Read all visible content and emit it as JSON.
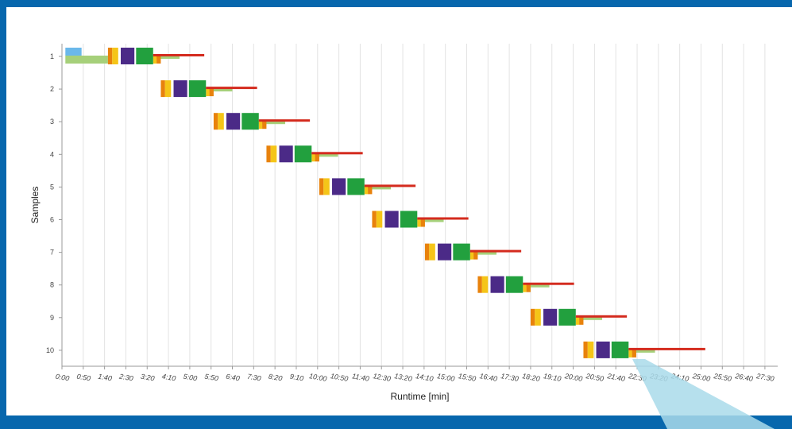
{
  "colors": {
    "background_frame": "#0767ad",
    "callout": "#a9dbea",
    "grid": "#e3e3e3",
    "axis": "#9a9a9a"
  },
  "chart_data": {
    "type": "gantt",
    "xlabel": "Runtime [min]",
    "ylabel": "Samples",
    "x_unit": "seconds",
    "xlim": [
      0,
      1680
    ],
    "x_ticks": [
      "0:00",
      "0:50",
      "1:40",
      "2:30",
      "3:20",
      "4:10",
      "5:00",
      "5:50",
      "6:40",
      "7:30",
      "8:20",
      "9:10",
      "10:00",
      "10:50",
      "11:40",
      "12:30",
      "13:20",
      "14:10",
      "15:00",
      "15:50",
      "16:40",
      "17:30",
      "18:20",
      "19:10",
      "20:00",
      "20:50",
      "21:40",
      "22:30",
      "23:20",
      "24:10",
      "25:00",
      "25:50",
      "26:40",
      "27:30"
    ],
    "x_tick_values": [
      0,
      50,
      100,
      150,
      200,
      250,
      300,
      350,
      400,
      450,
      500,
      550,
      600,
      650,
      700,
      750,
      800,
      850,
      900,
      950,
      1000,
      1050,
      1100,
      1150,
      1200,
      1250,
      1300,
      1350,
      1400,
      1450,
      1500,
      1550,
      1600,
      1650
    ],
    "y_categories": [
      "1",
      "2",
      "3",
      "4",
      "5",
      "6",
      "7",
      "8",
      "9",
      "10"
    ],
    "grid": true,
    "legend": "none",
    "sample_step_offset_s": 124,
    "sample_template": [
      {
        "name": "step-orange",
        "start": 108,
        "end": 118,
        "color": "#e8820c",
        "lane": "main"
      },
      {
        "name": "step-yellow",
        "start": 118,
        "end": 132,
        "color": "#f5c518",
        "lane": "main"
      },
      {
        "name": "step-purple",
        "start": 138,
        "end": 170,
        "color": "#4b2a87",
        "lane": "main"
      },
      {
        "name": "step-green",
        "start": 174,
        "end": 214,
        "color": "#22a03e",
        "lane": "main"
      },
      {
        "name": "step-lightgreen",
        "start": 214,
        "end": 276,
        "color": "#a6d07a",
        "lane": "low"
      },
      {
        "name": "step-small-orange",
        "start": 222,
        "end": 232,
        "color": "#e8820c",
        "lane": "low"
      },
      {
        "name": "step-small-yellow",
        "start": 214,
        "end": 222,
        "color": "#f5c518",
        "lane": "low"
      },
      {
        "name": "step-red-line",
        "start": 214,
        "end": 334,
        "color": "#d42b1e",
        "lane": "line"
      }
    ],
    "sample1_extra": [
      {
        "name": "step-blue",
        "start": 8,
        "end": 46,
        "color": "#6ab8ea",
        "lane": "top"
      },
      {
        "name": "step-lightgreen-long",
        "start": 8,
        "end": 108,
        "color": "#a6d07a",
        "lane": "bottom"
      }
    ],
    "last_sample_line_extension_s": 60
  }
}
